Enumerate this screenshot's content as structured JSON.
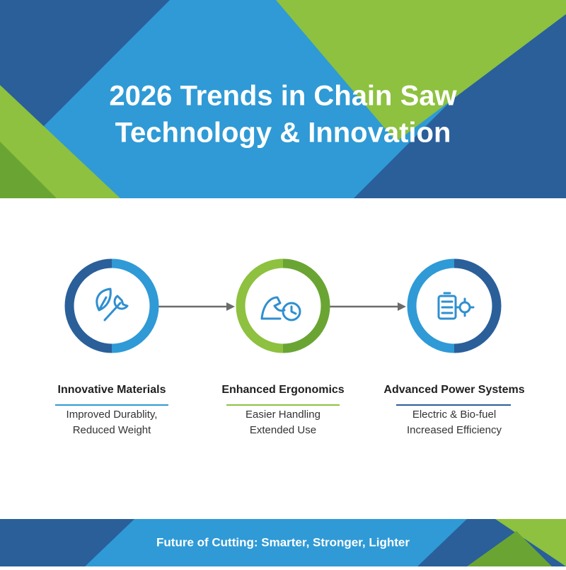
{
  "header": {
    "title": [
      "2026 Trends in Chain Saw",
      "Technology & Innovation"
    ]
  },
  "nodes": [
    {
      "label": "Innovative Materials",
      "description": [
        "Improved Durablity,",
        "Reduced Weight"
      ]
    },
    {
      "label": "Enhanced Ergonomics",
      "description": [
        "Easier Handling",
        "Extended Use"
      ]
    },
    {
      "label": "Advanced Power Systems",
      "description": [
        "Electric & Bio-fuel",
        "Increased Efficiency"
      ]
    }
  ],
  "footer": {
    "text": "Future of Cutting: Smarter, Stronger, Lighter"
  }
}
